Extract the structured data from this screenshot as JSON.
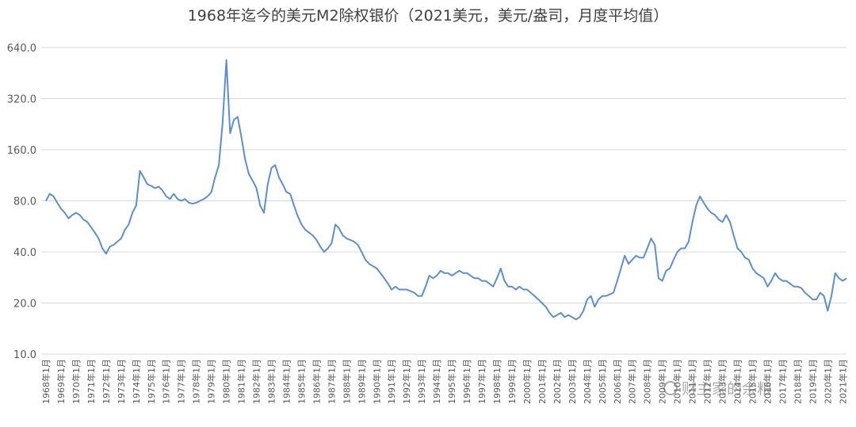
{
  "chart_data": {
    "type": "line",
    "title": "1968年迄今的美元M2除权银价（2021美元，美元/盎司，月度平均值）",
    "watermark": "财主家的余粮",
    "color": "#5b8fd0",
    "log_scale": true,
    "grid": true,
    "ylim": [
      10,
      640
    ],
    "yticks": [
      {
        "value": 10,
        "label": "10.0"
      },
      {
        "value": 20,
        "label": "20.0"
      },
      {
        "value": 40,
        "label": "40.0"
      },
      {
        "value": 80,
        "label": "80.0"
      },
      {
        "value": 160,
        "label": "160.0"
      },
      {
        "value": 320,
        "label": "320.0"
      },
      {
        "value": 640,
        "label": "640.0"
      }
    ],
    "categories": [
      "1968年1月",
      null,
      null,
      null,
      "1969年1月",
      null,
      null,
      null,
      "1970年1月",
      null,
      null,
      null,
      "1971年1月",
      null,
      null,
      null,
      "1972年1月",
      null,
      null,
      null,
      "1973年1月",
      null,
      null,
      null,
      "1974年1月",
      null,
      null,
      null,
      "1975年1月",
      null,
      null,
      null,
      "1976年1月",
      null,
      null,
      null,
      "1977年1月",
      null,
      null,
      null,
      "1978年1月",
      null,
      null,
      null,
      "1979年1月",
      null,
      null,
      null,
      "1980年1月",
      null,
      null,
      null,
      "1981年1月",
      null,
      null,
      null,
      "1982年1月",
      null,
      null,
      null,
      "1983年1月",
      null,
      null,
      null,
      "1984年1月",
      null,
      null,
      null,
      "1985年1月",
      null,
      null,
      null,
      "1986年1月",
      null,
      null,
      null,
      "1987年1月",
      null,
      null,
      null,
      "1988年1月",
      null,
      null,
      null,
      "1989年1月",
      null,
      null,
      null,
      "1990年1月",
      null,
      null,
      null,
      "1991年1月",
      null,
      null,
      null,
      "1992年1月",
      null,
      null,
      null,
      "1993年1月",
      null,
      null,
      null,
      "1994年1月",
      null,
      null,
      null,
      "1995年1月",
      null,
      null,
      null,
      "1996年1月",
      null,
      null,
      null,
      "1997年1月",
      null,
      null,
      null,
      "1998年1月",
      null,
      null,
      null,
      "1999年1月",
      null,
      null,
      null,
      "2000年1月",
      null,
      null,
      null,
      "2001年1月",
      null,
      null,
      null,
      "2002年1月",
      null,
      null,
      null,
      "2003年1月",
      null,
      null,
      null,
      "2004年1月",
      null,
      null,
      null,
      "2005年1月",
      null,
      null,
      null,
      "2006年1月",
      null,
      null,
      null,
      "2007年1月",
      null,
      null,
      null,
      "2008年1月",
      null,
      null,
      null,
      "2009年1月",
      null,
      null,
      null,
      "2010年1月",
      null,
      null,
      null,
      "2011年1月",
      null,
      null,
      null,
      "2012年1月",
      null,
      null,
      null,
      "2013年1月",
      null,
      null,
      null,
      "2014年1月",
      null,
      null,
      null,
      "2015年1月",
      null,
      null,
      null,
      "2016年1月",
      null,
      null,
      null,
      "2017年1月",
      null,
      null,
      null,
      "2018年1月",
      null,
      null,
      null,
      "2019年1月",
      null,
      null,
      null,
      "2020年1月",
      null,
      null,
      null,
      "2021年1月",
      null
    ],
    "values": [
      80,
      88,
      85,
      78,
      72,
      68,
      63,
      66,
      68,
      66,
      62,
      60,
      56,
      52,
      48,
      42,
      39,
      43,
      44,
      46,
      48,
      54,
      58,
      68,
      75,
      120,
      110,
      100,
      98,
      95,
      97,
      92,
      85,
      82,
      88,
      82,
      80,
      82,
      78,
      77,
      78,
      80,
      82,
      85,
      90,
      110,
      130,
      230,
      540,
      200,
      240,
      250,
      190,
      140,
      115,
      105,
      95,
      75,
      68,
      100,
      125,
      130,
      110,
      100,
      90,
      88,
      75,
      65,
      58,
      54,
      52,
      50,
      47,
      43,
      40,
      42,
      45,
      58,
      55,
      50,
      48,
      47,
      46,
      44,
      40,
      36,
      34,
      33,
      32,
      30,
      28,
      26,
      24,
      25,
      24,
      24,
      24,
      23.5,
      23,
      22,
      22,
      25,
      29,
      28,
      29,
      31,
      30,
      30,
      29,
      30,
      31,
      30,
      30,
      29,
      28,
      28,
      27,
      27,
      26,
      25,
      28,
      32,
      27,
      25,
      25,
      24,
      25,
      24,
      24,
      23,
      22,
      21,
      20,
      19,
      17.5,
      16.5,
      17,
      17.5,
      16.5,
      17,
      16.5,
      16,
      16.5,
      18,
      21,
      22,
      19,
      21,
      22,
      22,
      22.5,
      23,
      27,
      32,
      38,
      34,
      36,
      38,
      37,
      37,
      42,
      48,
      44,
      28,
      27,
      31,
      32,
      36,
      40,
      42,
      42,
      46,
      60,
      75,
      85,
      78,
      72,
      68,
      66,
      62,
      60,
      66,
      60,
      50,
      42,
      40,
      37,
      36,
      32,
      30,
      29,
      28,
      25,
      27,
      30,
      28,
      27,
      27,
      26,
      25,
      25,
      24.5,
      23,
      22,
      21,
      21,
      23,
      22,
      18,
      22,
      30,
      28,
      27,
      28
    ]
  }
}
